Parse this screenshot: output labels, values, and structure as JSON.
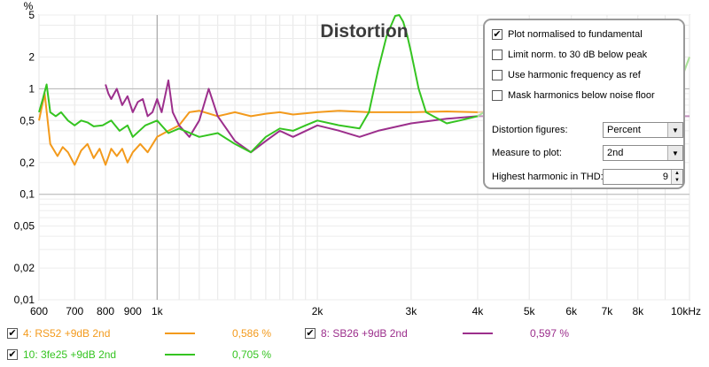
{
  "chart_data": {
    "type": "line",
    "title": "Distortion",
    "ylabel": "%",
    "x_scale": "log",
    "y_scale": "log",
    "xlim": [
      600,
      10000
    ],
    "ylim": [
      0.01,
      5
    ],
    "x_ticks": [
      {
        "v": 600,
        "label": "600"
      },
      {
        "v": 700,
        "label": "700"
      },
      {
        "v": 800,
        "label": "800"
      },
      {
        "v": 900,
        "label": "900"
      },
      {
        "v": 1000,
        "label": "1k"
      },
      {
        "v": 2000,
        "label": "2k"
      },
      {
        "v": 3000,
        "label": "3k"
      },
      {
        "v": 4000,
        "label": "4k"
      },
      {
        "v": 5000,
        "label": "5k"
      },
      {
        "v": 6000,
        "label": "6k"
      },
      {
        "v": 7000,
        "label": "7k"
      },
      {
        "v": 8000,
        "label": "8k"
      },
      {
        "v": 10000,
        "label": "10kHz"
      }
    ],
    "y_ticks": [
      {
        "v": 5,
        "label": "5"
      },
      {
        "v": 2,
        "label": "2"
      },
      {
        "v": 1,
        "label": "1"
      },
      {
        "v": 0.5,
        "label": "0,5"
      },
      {
        "v": 0.2,
        "label": "0,2"
      },
      {
        "v": 0.1,
        "label": "0,1"
      },
      {
        "v": 0.05,
        "label": "0,05"
      },
      {
        "v": 0.02,
        "label": "0,02"
      },
      {
        "v": 0.01,
        "label": "0,01"
      }
    ],
    "series": [
      {
        "name": "4: RS52 +9dB 2nd",
        "color": "#f39a1c",
        "x": [
          600,
          615,
          630,
          650,
          665,
          680,
          700,
          720,
          740,
          760,
          780,
          800,
          820,
          840,
          860,
          880,
          900,
          930,
          960,
          1000,
          1050,
          1100,
          1150,
          1200,
          1300,
          1400,
          1500,
          1600,
          1700,
          1800,
          2000,
          2200,
          2500,
          2800,
          3000,
          3500,
          4000
        ],
        "y": [
          0.5,
          0.9,
          0.3,
          0.23,
          0.28,
          0.25,
          0.19,
          0.26,
          0.3,
          0.22,
          0.27,
          0.19,
          0.27,
          0.23,
          0.27,
          0.2,
          0.25,
          0.3,
          0.25,
          0.35,
          0.4,
          0.45,
          0.6,
          0.62,
          0.55,
          0.6,
          0.55,
          0.58,
          0.6,
          0.57,
          0.6,
          0.62,
          0.6,
          0.6,
          0.6,
          0.61,
          0.6
        ]
      },
      {
        "name": "4: RS52 +9dB 2nd (faded)",
        "color": "#f7c8a0",
        "x": [
          4000,
          4500,
          5000,
          5500,
          6000,
          6500,
          7000,
          7500,
          8000,
          8500,
          9000,
          9500,
          10000
        ],
        "y": [
          0.6,
          0.62,
          0.58,
          0.62,
          0.95,
          0.5,
          0.8,
          0.55,
          0.9,
          0.6,
          0.8,
          1.0,
          2.0
        ]
      },
      {
        "name": "8: SB26 +9dB 2nd",
        "color": "#9c2f8c",
        "x": [
          800,
          810,
          820,
          840,
          860,
          880,
          900,
          920,
          940,
          960,
          980,
          1000,
          1020,
          1050,
          1070,
          1100,
          1150,
          1200,
          1250,
          1300,
          1400,
          1500,
          1600,
          1700,
          1800,
          2000,
          2200,
          2400,
          2600,
          3000,
          3500,
          4000
        ],
        "y": [
          1.1,
          0.9,
          0.8,
          1.0,
          0.7,
          0.85,
          0.6,
          0.75,
          0.8,
          0.55,
          0.6,
          0.8,
          0.6,
          1.2,
          0.6,
          0.45,
          0.35,
          0.5,
          1.0,
          0.55,
          0.32,
          0.25,
          0.32,
          0.4,
          0.35,
          0.45,
          0.4,
          0.35,
          0.4,
          0.47,
          0.52,
          0.55
        ]
      },
      {
        "name": "8: SB26 +9dB 2nd (faded)",
        "color": "#c490bd",
        "x": [
          4000,
          5000,
          6000,
          7000,
          8000,
          9000,
          10000
        ],
        "y": [
          0.55,
          0.55,
          0.56,
          0.56,
          0.57,
          0.55,
          0.55
        ]
      },
      {
        "name": "10: 3fe25 +9dB 2nd",
        "color": "#35c421",
        "x": [
          600,
          610,
          620,
          630,
          645,
          660,
          680,
          700,
          720,
          740,
          760,
          790,
          820,
          850,
          880,
          900,
          950,
          1000,
          1050,
          1100,
          1200,
          1300,
          1400,
          1500,
          1600,
          1700,
          1800,
          1900,
          2000,
          2200,
          2400,
          2500,
          2600,
          2700,
          2800,
          2850,
          2900,
          2950,
          3000,
          3100,
          3200,
          3300,
          3500,
          3700,
          4000
        ],
        "y": [
          0.6,
          0.8,
          1.1,
          0.6,
          0.55,
          0.6,
          0.5,
          0.45,
          0.5,
          0.48,
          0.44,
          0.45,
          0.5,
          0.4,
          0.45,
          0.35,
          0.45,
          0.5,
          0.38,
          0.42,
          0.35,
          0.38,
          0.3,
          0.25,
          0.35,
          0.42,
          0.4,
          0.45,
          0.5,
          0.45,
          0.42,
          0.6,
          1.5,
          3.2,
          4.9,
          5.0,
          4.3,
          3.2,
          2.2,
          1.0,
          0.6,
          0.55,
          0.47,
          0.5,
          0.55
        ]
      },
      {
        "name": "10: 3fe25 +9dB 2nd (faded)",
        "color": "#a8e49a",
        "x": [
          4000,
          4500,
          5000,
          5500,
          6000,
          6500,
          7000,
          7500,
          8000,
          8500,
          9000,
          9500,
          10000
        ],
        "y": [
          0.55,
          0.8,
          0.6,
          0.65,
          0.7,
          0.45,
          0.9,
          0.5,
          0.7,
          0.6,
          0.8,
          1.0,
          2.0
        ]
      }
    ]
  },
  "settings": {
    "plot_normalised": {
      "label": "Plot normalised to fundamental",
      "checked": true
    },
    "limit_norm": {
      "label": "Limit norm. to 30 dB below peak",
      "checked": false
    },
    "use_harmonic_freq": {
      "label": "Use harmonic frequency as ref",
      "checked": false
    },
    "mask_harmonics": {
      "label": "Mask harmonics below noise floor",
      "checked": false
    },
    "distortion_figures": {
      "label": "Distortion figures:",
      "value": "Percent"
    },
    "measure_to_plot": {
      "label": "Measure to plot:",
      "value": "2nd"
    },
    "highest_harmonic": {
      "label": "Highest harmonic in THD:",
      "value": "9"
    }
  },
  "legend": [
    {
      "label": "4: RS52 +9dB 2nd",
      "value": "0,586 %",
      "color": "#f39a1c",
      "checked": true
    },
    {
      "label": "8: SB26 +9dB 2nd",
      "value": "0,597 %",
      "color": "#9c2f8c",
      "checked": true
    },
    {
      "label": "10: 3fe25 +9dB 2nd",
      "value": "0,705 %",
      "color": "#35c421",
      "checked": true
    }
  ]
}
